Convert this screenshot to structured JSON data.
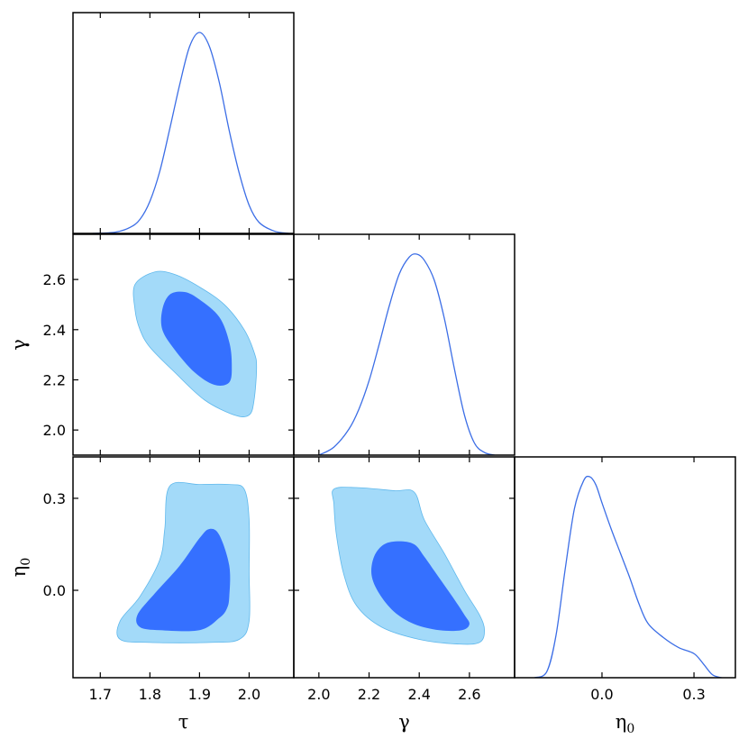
{
  "chart_data": {
    "type": "corner",
    "colors": {
      "line": "#3c6ee6",
      "inner": "#3570ff",
      "outer": "#a3daf9",
      "outer_edge": "#5fb8ec",
      "frame": "#000000"
    },
    "params": [
      {
        "name": "tau",
        "label": "τ",
        "range": [
          1.645,
          2.09
        ],
        "ticks": [
          1.7,
          1.8,
          1.9,
          2.0
        ],
        "tick_labels": [
          "1.7",
          "1.8",
          "1.9",
          "2.0"
        ]
      },
      {
        "name": "gamma",
        "label": "γ",
        "range": [
          1.9,
          2.78
        ],
        "ticks": [
          2.0,
          2.2,
          2.4,
          2.6
        ],
        "tick_labels": [
          "2.0",
          "2.2",
          "2.4",
          "2.6"
        ]
      },
      {
        "name": "eta0",
        "label": "η",
        "label_sub": "0",
        "range": [
          -0.285,
          0.435
        ],
        "ticks": [
          0.0,
          0.3
        ],
        "tick_labels": [
          "0.0",
          "0.3"
        ]
      }
    ],
    "marginals": [
      {
        "param": "tau",
        "x": [
          1.685,
          1.73,
          1.76,
          1.78,
          1.8,
          1.82,
          1.84,
          1.86,
          1.88,
          1.9,
          1.92,
          1.94,
          1.96,
          1.98,
          2.0,
          2.02,
          2.05,
          2.08
        ],
        "y": [
          0.0,
          0.006,
          0.03,
          0.07,
          0.16,
          0.31,
          0.52,
          0.74,
          0.93,
          1.0,
          0.93,
          0.75,
          0.51,
          0.3,
          0.14,
          0.055,
          0.012,
          0.0
        ]
      },
      {
        "param": "gamma",
        "x": [
          2.0,
          2.06,
          2.12,
          2.16,
          2.2,
          2.24,
          2.28,
          2.32,
          2.36,
          2.39,
          2.42,
          2.46,
          2.5,
          2.54,
          2.58,
          2.62,
          2.66,
          2.7
        ],
        "y": [
          0.0,
          0.04,
          0.13,
          0.23,
          0.37,
          0.55,
          0.74,
          0.9,
          0.985,
          1.0,
          0.97,
          0.87,
          0.68,
          0.43,
          0.2,
          0.06,
          0.013,
          0.0
        ]
      },
      {
        "param": "eta0",
        "x": [
          -0.22,
          -0.18,
          -0.15,
          -0.12,
          -0.09,
          -0.06,
          -0.04,
          -0.02,
          0.0,
          0.03,
          0.06,
          0.09,
          0.12,
          0.15,
          0.2,
          0.25,
          0.3,
          0.33,
          0.36,
          0.39
        ],
        "y": [
          0.0,
          0.03,
          0.21,
          0.54,
          0.84,
          0.98,
          1.0,
          0.96,
          0.87,
          0.74,
          0.62,
          0.5,
          0.37,
          0.27,
          0.2,
          0.15,
          0.12,
          0.07,
          0.015,
          0.0
        ]
      }
    ],
    "contours": [
      {
        "x": "tau",
        "y": "gamma",
        "outer": [
          [
            1.81,
            2.63
          ],
          [
            1.85,
            2.62
          ],
          [
            1.9,
            2.57
          ],
          [
            1.95,
            2.5
          ],
          [
            1.99,
            2.4
          ],
          [
            2.01,
            2.31
          ],
          [
            2.015,
            2.25
          ],
          [
            2.01,
            2.12
          ],
          [
            2.0,
            2.06
          ],
          [
            1.97,
            2.06
          ],
          [
            1.91,
            2.12
          ],
          [
            1.85,
            2.23
          ],
          [
            1.8,
            2.33
          ],
          [
            1.78,
            2.4
          ],
          [
            1.77,
            2.48
          ],
          [
            1.77,
            2.58
          ]
        ],
        "inner": [
          [
            1.84,
            2.54
          ],
          [
            1.87,
            2.55
          ],
          [
            1.9,
            2.52
          ],
          [
            1.94,
            2.45
          ],
          [
            1.96,
            2.35
          ],
          [
            1.965,
            2.26
          ],
          [
            1.96,
            2.19
          ],
          [
            1.93,
            2.18
          ],
          [
            1.89,
            2.23
          ],
          [
            1.85,
            2.32
          ],
          [
            1.825,
            2.4
          ],
          [
            1.825,
            2.48
          ]
        ]
      },
      {
        "x": "tau",
        "y": "eta0",
        "outer": [
          [
            1.84,
            0.34
          ],
          [
            1.9,
            0.345
          ],
          [
            1.96,
            0.345
          ],
          [
            1.99,
            0.33
          ],
          [
            2.0,
            0.23
          ],
          [
            2.0,
            0.06
          ],
          [
            2.0,
            -0.1
          ],
          [
            1.98,
            -0.16
          ],
          [
            1.92,
            -0.17
          ],
          [
            1.8,
            -0.17
          ],
          [
            1.74,
            -0.16
          ],
          [
            1.74,
            -0.1
          ],
          [
            1.78,
            -0.02
          ],
          [
            1.82,
            0.1
          ],
          [
            1.83,
            0.2
          ]
        ],
        "inner": [
          [
            1.92,
            0.2
          ],
          [
            1.94,
            0.18
          ],
          [
            1.96,
            0.08
          ],
          [
            1.96,
            -0.02
          ],
          [
            1.955,
            -0.06
          ],
          [
            1.94,
            -0.09
          ],
          [
            1.9,
            -0.13
          ],
          [
            1.82,
            -0.13
          ],
          [
            1.78,
            -0.12
          ],
          [
            1.775,
            -0.08
          ],
          [
            1.81,
            -0.01
          ],
          [
            1.86,
            0.08
          ],
          [
            1.9,
            0.17
          ]
        ]
      },
      {
        "x": "gamma",
        "y": "eta0",
        "outer": [
          [
            2.06,
            0.33
          ],
          [
            2.15,
            0.335
          ],
          [
            2.3,
            0.325
          ],
          [
            2.38,
            0.32
          ],
          [
            2.42,
            0.23
          ],
          [
            2.5,
            0.12
          ],
          [
            2.58,
            0.0
          ],
          [
            2.64,
            -0.08
          ],
          [
            2.66,
            -0.13
          ],
          [
            2.64,
            -0.17
          ],
          [
            2.55,
            -0.175
          ],
          [
            2.4,
            -0.16
          ],
          [
            2.25,
            -0.12
          ],
          [
            2.15,
            -0.05
          ],
          [
            2.1,
            0.05
          ],
          [
            2.07,
            0.18
          ],
          [
            2.06,
            0.28
          ]
        ],
        "inner": [
          [
            2.26,
            0.15
          ],
          [
            2.32,
            0.16
          ],
          [
            2.38,
            0.15
          ],
          [
            2.42,
            0.11
          ],
          [
            2.48,
            0.04
          ],
          [
            2.54,
            -0.03
          ],
          [
            2.58,
            -0.08
          ],
          [
            2.6,
            -0.11
          ],
          [
            2.57,
            -0.13
          ],
          [
            2.48,
            -0.13
          ],
          [
            2.38,
            -0.11
          ],
          [
            2.3,
            -0.07
          ],
          [
            2.24,
            -0.01
          ],
          [
            2.21,
            0.05
          ],
          [
            2.22,
            0.11
          ]
        ]
      }
    ]
  }
}
